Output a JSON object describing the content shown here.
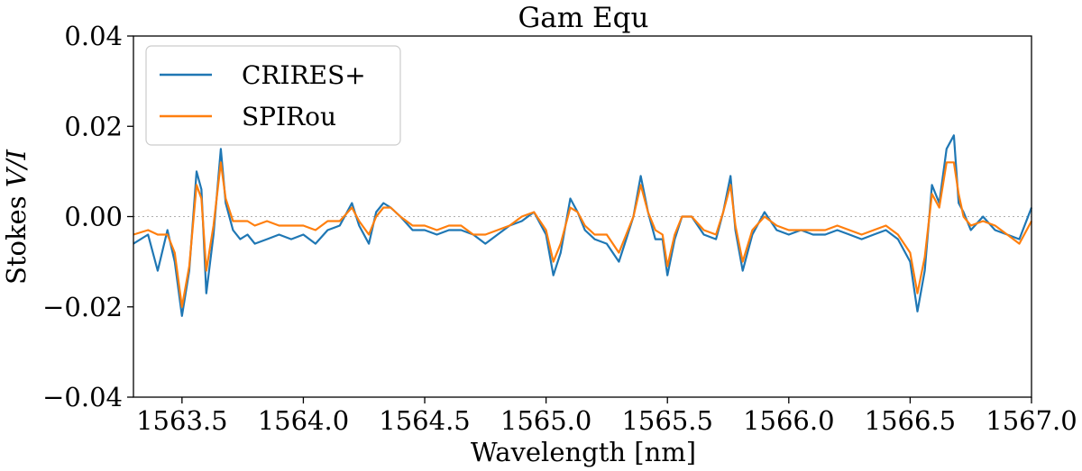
{
  "chart_data": {
    "type": "line",
    "title": "Gam Equ",
    "xlabel": "Wavelength [nm]",
    "ylabel_prefix": "Stokes ",
    "ylabel_italic": "V/I",
    "xlim": [
      1563.3,
      1567.0
    ],
    "ylim": [
      -0.04,
      0.04
    ],
    "xticks": [
      1563.5,
      1564.0,
      1564.5,
      1565.0,
      1565.5,
      1566.0,
      1566.5,
      1567.0
    ],
    "xtick_labels": [
      "1563.5",
      "1564.0",
      "1564.5",
      "1565.0",
      "1565.5",
      "1566.0",
      "1566.5",
      "1567.0"
    ],
    "yticks": [
      -0.04,
      -0.02,
      0.0,
      0.02,
      0.04
    ],
    "ytick_labels": [
      "−0.04",
      "−0.02",
      "0.00",
      "0.02",
      "0.04"
    ],
    "reference_line": 0.0,
    "grid": false,
    "legend_position": "upper-left",
    "series": [
      {
        "name": "CRIRES+",
        "color": "#1f77b4",
        "x": [
          1563.3,
          1563.36,
          1563.4,
          1563.44,
          1563.47,
          1563.5,
          1563.53,
          1563.56,
          1563.58,
          1563.6,
          1563.63,
          1563.66,
          1563.68,
          1563.71,
          1563.74,
          1563.77,
          1563.8,
          1563.85,
          1563.9,
          1563.95,
          1564.0,
          1564.05,
          1564.1,
          1564.15,
          1564.2,
          1564.23,
          1564.27,
          1564.3,
          1564.33,
          1564.36,
          1564.4,
          1564.45,
          1564.5,
          1564.55,
          1564.6,
          1564.65,
          1564.7,
          1564.75,
          1564.8,
          1564.85,
          1564.9,
          1564.95,
          1565.0,
          1565.03,
          1565.06,
          1565.1,
          1565.13,
          1565.16,
          1565.2,
          1565.25,
          1565.3,
          1565.33,
          1565.36,
          1565.39,
          1565.42,
          1565.45,
          1565.48,
          1565.5,
          1565.53,
          1565.56,
          1565.6,
          1565.65,
          1565.7,
          1565.73,
          1565.76,
          1565.78,
          1565.81,
          1565.85,
          1565.9,
          1565.95,
          1566.0,
          1566.05,
          1566.1,
          1566.15,
          1566.2,
          1566.25,
          1566.3,
          1566.35,
          1566.4,
          1566.45,
          1566.5,
          1566.53,
          1566.56,
          1566.59,
          1566.62,
          1566.65,
          1566.68,
          1566.7,
          1566.72,
          1566.75,
          1566.8,
          1566.85,
          1566.9,
          1566.95,
          1567.0
        ],
        "y": [
          -0.006,
          -0.004,
          -0.012,
          -0.003,
          -0.01,
          -0.022,
          -0.012,
          0.01,
          0.006,
          -0.017,
          -0.004,
          0.015,
          0.003,
          -0.003,
          -0.005,
          -0.004,
          -0.006,
          -0.005,
          -0.004,
          -0.005,
          -0.004,
          -0.006,
          -0.003,
          -0.002,
          0.003,
          -0.002,
          -0.006,
          0.001,
          0.003,
          0.002,
          0.0,
          -0.003,
          -0.003,
          -0.004,
          -0.003,
          -0.003,
          -0.004,
          -0.006,
          -0.004,
          -0.002,
          -0.001,
          0.001,
          -0.004,
          -0.013,
          -0.008,
          0.004,
          0.001,
          -0.003,
          -0.005,
          -0.006,
          -0.01,
          -0.005,
          0.0,
          0.009,
          0.001,
          -0.005,
          -0.005,
          -0.013,
          -0.005,
          0.0,
          0.0,
          -0.004,
          -0.005,
          0.001,
          0.009,
          -0.003,
          -0.012,
          -0.004,
          0.001,
          -0.003,
          -0.004,
          -0.003,
          -0.004,
          -0.004,
          -0.003,
          -0.004,
          -0.005,
          -0.004,
          -0.003,
          -0.005,
          -0.01,
          -0.021,
          -0.012,
          0.007,
          0.003,
          0.015,
          0.018,
          0.003,
          0.001,
          -0.003,
          0.0,
          -0.003,
          -0.004,
          -0.005,
          0.002
        ]
      },
      {
        "name": "SPIRou",
        "color": "#ff7f0e",
        "x": [
          1563.3,
          1563.36,
          1563.4,
          1563.44,
          1563.47,
          1563.5,
          1563.53,
          1563.56,
          1563.58,
          1563.6,
          1563.63,
          1563.66,
          1563.68,
          1563.71,
          1563.74,
          1563.77,
          1563.8,
          1563.85,
          1563.9,
          1563.95,
          1564.0,
          1564.05,
          1564.1,
          1564.15,
          1564.2,
          1564.23,
          1564.27,
          1564.3,
          1564.33,
          1564.36,
          1564.4,
          1564.45,
          1564.5,
          1564.55,
          1564.6,
          1564.65,
          1564.7,
          1564.75,
          1564.8,
          1564.85,
          1564.9,
          1564.95,
          1565.0,
          1565.03,
          1565.06,
          1565.1,
          1565.13,
          1565.16,
          1565.2,
          1565.25,
          1565.3,
          1565.33,
          1565.36,
          1565.39,
          1565.42,
          1565.45,
          1565.48,
          1565.5,
          1565.53,
          1565.56,
          1565.6,
          1565.65,
          1565.7,
          1565.73,
          1565.76,
          1565.78,
          1565.81,
          1565.85,
          1565.9,
          1565.95,
          1566.0,
          1566.05,
          1566.1,
          1566.15,
          1566.2,
          1566.25,
          1566.3,
          1566.35,
          1566.4,
          1566.45,
          1566.5,
          1566.53,
          1566.56,
          1566.59,
          1566.62,
          1566.65,
          1566.68,
          1566.7,
          1566.72,
          1566.75,
          1566.8,
          1566.85,
          1566.9,
          1566.95,
          1567.0
        ],
        "y": [
          -0.004,
          -0.003,
          -0.004,
          -0.004,
          -0.008,
          -0.02,
          -0.011,
          0.007,
          0.004,
          -0.012,
          -0.002,
          0.012,
          0.004,
          -0.001,
          -0.001,
          -0.001,
          -0.002,
          -0.001,
          -0.002,
          -0.002,
          -0.002,
          -0.003,
          -0.001,
          -0.001,
          0.002,
          -0.001,
          -0.004,
          0.0,
          0.002,
          0.002,
          0.0,
          -0.002,
          -0.002,
          -0.003,
          -0.002,
          -0.002,
          -0.004,
          -0.004,
          -0.003,
          -0.002,
          0.0,
          0.001,
          -0.003,
          -0.01,
          -0.006,
          0.002,
          0.001,
          -0.002,
          -0.004,
          -0.004,
          -0.008,
          -0.004,
          0.0,
          0.007,
          0.001,
          -0.003,
          -0.004,
          -0.011,
          -0.004,
          0.0,
          0.0,
          -0.003,
          -0.004,
          0.001,
          0.007,
          -0.002,
          -0.01,
          -0.003,
          0.0,
          -0.002,
          -0.003,
          -0.003,
          -0.003,
          -0.003,
          -0.002,
          -0.003,
          -0.004,
          -0.003,
          -0.002,
          -0.004,
          -0.008,
          -0.017,
          -0.009,
          0.005,
          0.002,
          0.012,
          0.012,
          0.005,
          0.0,
          -0.002,
          -0.001,
          -0.002,
          -0.004,
          -0.006,
          -0.001
        ]
      }
    ]
  }
}
